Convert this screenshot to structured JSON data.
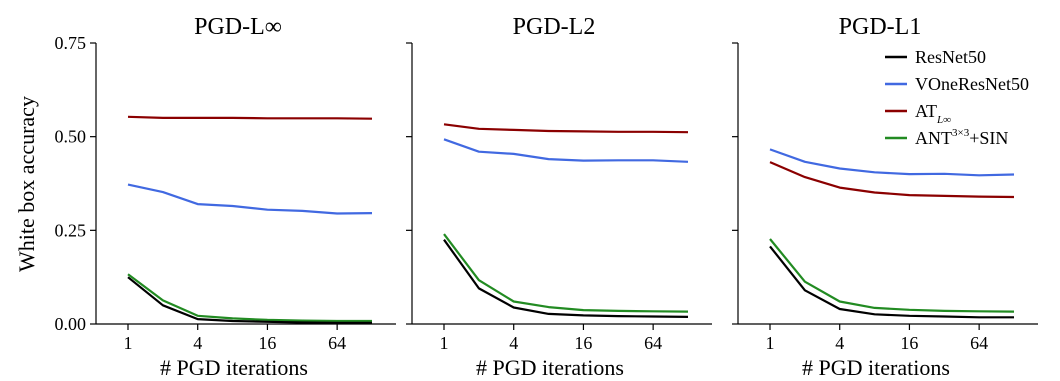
{
  "chart_data": {
    "type": "line",
    "ylabel": "White box accuracy",
    "xlabel": "# PGD iterations",
    "x": [
      1,
      2,
      4,
      8,
      16,
      32,
      64,
      128
    ],
    "xticks": [
      1,
      4,
      16,
      64
    ],
    "xtick_labels": [
      "1",
      "4",
      "16",
      "64"
    ],
    "xscale": "log2",
    "ylim": [
      0,
      0.75
    ],
    "yticks": [
      0,
      0.25,
      0.5,
      0.75
    ],
    "ytick_labels": [
      "0.00",
      "0.25",
      "0.50",
      "0.75"
    ],
    "legend": {
      "placement": "top-right of third panel",
      "entries": [
        {
          "series": "ResNet50",
          "label": "ResNet50"
        },
        {
          "series": "VOneResNet50",
          "label": "VOneResNet50"
        },
        {
          "series": "AT",
          "label": "AT",
          "sub": "L∞"
        },
        {
          "series": "ANT+SIN",
          "label": "ANT",
          "sup": "3×3",
          "suffix": "+SIN"
        }
      ]
    },
    "colors": {
      "ResNet50": "#000000",
      "VOneResNet50": "#4169e1",
      "AT": "#8b0000",
      "ANT+SIN": "#228b22"
    },
    "panels": [
      {
        "title": "PGD-L∞",
        "series": [
          {
            "name": "AT",
            "values": [
              0.553,
              0.55,
              0.55,
              0.55,
              0.549,
              0.549,
              0.549,
              0.548
            ]
          },
          {
            "name": "VOneResNet50",
            "values": [
              0.372,
              0.352,
              0.32,
              0.315,
              0.305,
              0.302,
              0.295,
              0.296
            ]
          },
          {
            "name": "ANT+SIN",
            "values": [
              0.133,
              0.063,
              0.022,
              0.015,
              0.011,
              0.009,
              0.008,
              0.008
            ]
          },
          {
            "name": "ResNet50",
            "values": [
              0.125,
              0.05,
              0.013,
              0.008,
              0.006,
              0.004,
              0.003,
              0.003
            ]
          }
        ]
      },
      {
        "title": "PGD-L2",
        "series": [
          {
            "name": "AT",
            "values": [
              0.533,
              0.521,
              0.518,
              0.515,
              0.514,
              0.513,
              0.513,
              0.512
            ]
          },
          {
            "name": "VOneResNet50",
            "values": [
              0.493,
              0.46,
              0.454,
              0.44,
              0.436,
              0.437,
              0.437,
              0.433
            ]
          },
          {
            "name": "ANT+SIN",
            "values": [
              0.24,
              0.117,
              0.06,
              0.045,
              0.037,
              0.035,
              0.034,
              0.033
            ]
          },
          {
            "name": "ResNet50",
            "values": [
              0.225,
              0.095,
              0.044,
              0.027,
              0.023,
              0.021,
              0.02,
              0.019
            ]
          }
        ]
      },
      {
        "title": "PGD-L1",
        "series": [
          {
            "name": "VOneResNet50",
            "values": [
              0.466,
              0.433,
              0.415,
              0.405,
              0.4,
              0.401,
              0.397,
              0.399
            ]
          },
          {
            "name": "AT",
            "values": [
              0.432,
              0.392,
              0.364,
              0.351,
              0.344,
              0.342,
              0.34,
              0.339
            ]
          },
          {
            "name": "ANT+SIN",
            "values": [
              0.227,
              0.113,
              0.06,
              0.043,
              0.038,
              0.035,
              0.034,
              0.033
            ]
          },
          {
            "name": "ResNet50",
            "values": [
              0.207,
              0.09,
              0.04,
              0.026,
              0.022,
              0.02,
              0.018,
              0.018
            ]
          }
        ]
      }
    ]
  }
}
